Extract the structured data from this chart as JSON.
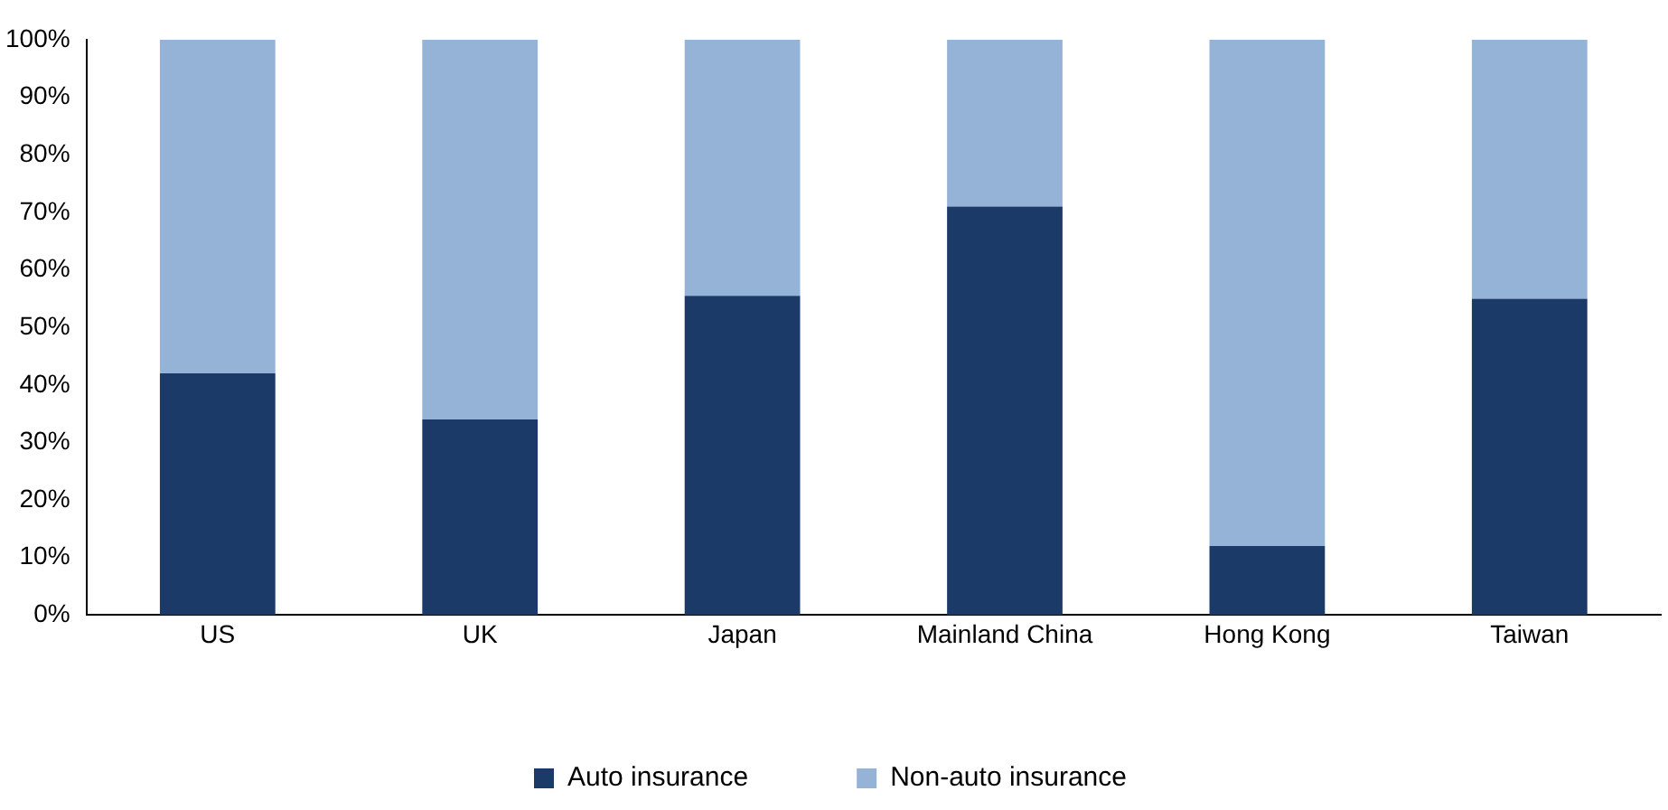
{
  "chart_data": {
    "type": "bar",
    "stacked": true,
    "categories": [
      "US",
      "UK",
      "Japan",
      "Mainland China",
      "Hong Kong",
      "Taiwan"
    ],
    "series": [
      {
        "name": "Auto insurance",
        "color": "#1b3a67",
        "values": [
          42,
          34,
          55.5,
          71,
          12,
          55
        ]
      },
      {
        "name": "Non-auto insurance",
        "color": "#95b3d7",
        "values": [
          58,
          66,
          44.5,
          29,
          88,
          45
        ]
      }
    ],
    "ylim": [
      0,
      100
    ],
    "yticks": [
      {
        "value": 0,
        "label": "0%"
      },
      {
        "value": 10,
        "label": "10%"
      },
      {
        "value": 20,
        "label": "20%"
      },
      {
        "value": 30,
        "label": "30%"
      },
      {
        "value": 40,
        "label": "40%"
      },
      {
        "value": 50,
        "label": "50%"
      },
      {
        "value": 60,
        "label": "60%"
      },
      {
        "value": 70,
        "label": "70%"
      },
      {
        "value": 80,
        "label": "80%"
      },
      {
        "value": 90,
        "label": "90%"
      },
      {
        "value": 100,
        "label": "100%"
      }
    ],
    "grid": false,
    "legend": "bottom"
  }
}
